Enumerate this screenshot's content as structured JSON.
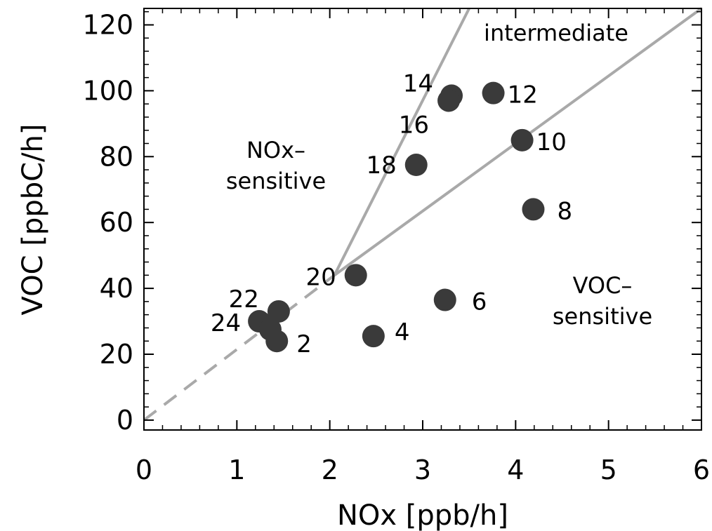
{
  "chart_data": {
    "type": "scatter",
    "xlabel": "NOx [ppb/h]",
    "ylabel": "VOC [ppbC/h]",
    "xlim": [
      0,
      6
    ],
    "ylim": [
      -3,
      125
    ],
    "x_ticks": [
      "0",
      "1",
      "2",
      "3",
      "4",
      "5",
      "6"
    ],
    "y_ticks": [
      "0",
      "20",
      "40",
      "60",
      "80",
      "100",
      "120"
    ],
    "grid": false,
    "points": [
      {
        "label": "2",
        "x": 1.43,
        "y": 24
      },
      {
        "label": "4",
        "x": 2.47,
        "y": 25.5
      },
      {
        "label": "6",
        "x": 3.24,
        "y": 36.5
      },
      {
        "label": "8",
        "x": 4.19,
        "y": 64
      },
      {
        "label": "10",
        "x": 4.07,
        "y": 85
      },
      {
        "label": "12",
        "x": 3.76,
        "y": 99.3
      },
      {
        "label": "14",
        "x": 3.31,
        "y": 98.5
      },
      {
        "label": "16",
        "x": 3.28,
        "y": 97
      },
      {
        "label": "18",
        "x": 2.93,
        "y": 77.5
      },
      {
        "label": "20",
        "x": 2.28,
        "y": 44
      },
      {
        "label": "22",
        "x": 1.45,
        "y": 33
      },
      {
        "label": "24",
        "x": 1.24,
        "y": 30
      },
      {
        "label": "",
        "x": 1.36,
        "y": 27.5
      }
    ],
    "lines": [
      {
        "style": "solid",
        "from": [
          2.05,
          44
        ],
        "to": [
          3.5,
          125
        ]
      },
      {
        "style": "solid",
        "from": [
          2.05,
          44
        ],
        "to": [
          6,
          125
        ]
      },
      {
        "style": "dashed",
        "from": [
          0,
          0
        ],
        "to": [
          2.05,
          44
        ]
      }
    ],
    "regions": [
      {
        "name": "intermediate",
        "lines": [
          "intermediate"
        ]
      },
      {
        "name": "nox-sensitive",
        "lines": [
          "NOx–",
          "sensitive"
        ]
      },
      {
        "name": "voc-sensitive",
        "lines": [
          "VOC–",
          "sensitive"
        ]
      }
    ],
    "colors": {
      "points": "#3a3a3a",
      "lines": "#a9a9a9",
      "axis": "#000000"
    }
  }
}
